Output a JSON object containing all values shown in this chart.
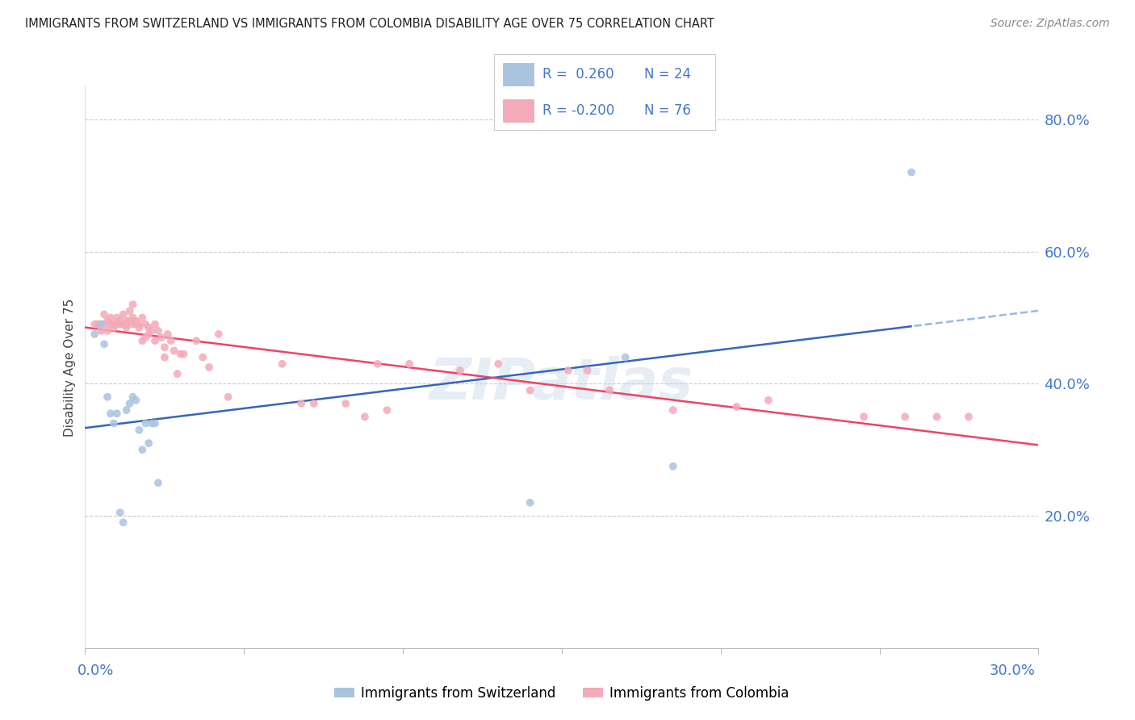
{
  "title": "IMMIGRANTS FROM SWITZERLAND VS IMMIGRANTS FROM COLOMBIA DISABILITY AGE OVER 75 CORRELATION CHART",
  "source": "Source: ZipAtlas.com",
  "ylabel": "Disability Age Over 75",
  "background_color": "#ffffff",
  "title_fontsize": 10.5,
  "watermark": "ZIPatlas",
  "xlim": [
    0.0,
    0.3
  ],
  "ylim": [
    0.0,
    0.85
  ],
  "right_yticks": [
    0.2,
    0.4,
    0.6,
    0.8
  ],
  "right_yticklabels": [
    "20.0%",
    "40.0%",
    "60.0%",
    "80.0%"
  ],
  "grid_color": "#cccccc",
  "grid_linestyle": "--",
  "grid_linewidth": 0.8,
  "grid_yticks": [
    0.2,
    0.4,
    0.6,
    0.8
  ],
  "color_swiss": "#aac4e0",
  "color_colombia": "#f4aab8",
  "color_swiss_line": "#3366bb",
  "color_colombia_line": "#ee4466",
  "color_swiss_dash": "#99bbdd",
  "swiss_x": [
    0.003,
    0.005,
    0.006,
    0.007,
    0.008,
    0.009,
    0.01,
    0.011,
    0.012,
    0.013,
    0.014,
    0.015,
    0.016,
    0.017,
    0.018,
    0.019,
    0.02,
    0.021,
    0.022,
    0.023,
    0.14,
    0.17,
    0.185,
    0.26
  ],
  "swiss_y": [
    0.475,
    0.49,
    0.46,
    0.38,
    0.355,
    0.34,
    0.355,
    0.205,
    0.19,
    0.36,
    0.37,
    0.38,
    0.375,
    0.33,
    0.3,
    0.34,
    0.31,
    0.34,
    0.34,
    0.25,
    0.22,
    0.44,
    0.275,
    0.72
  ],
  "colombia_x": [
    0.003,
    0.004,
    0.004,
    0.005,
    0.005,
    0.006,
    0.006,
    0.007,
    0.007,
    0.008,
    0.008,
    0.009,
    0.009,
    0.01,
    0.01,
    0.011,
    0.011,
    0.012,
    0.012,
    0.013,
    0.013,
    0.013,
    0.014,
    0.014,
    0.015,
    0.015,
    0.015,
    0.016,
    0.016,
    0.017,
    0.017,
    0.018,
    0.018,
    0.019,
    0.019,
    0.02,
    0.02,
    0.021,
    0.022,
    0.022,
    0.023,
    0.024,
    0.025,
    0.025,
    0.026,
    0.027,
    0.028,
    0.029,
    0.03,
    0.031,
    0.035,
    0.037,
    0.039,
    0.042,
    0.045,
    0.062,
    0.068,
    0.072,
    0.082,
    0.088,
    0.092,
    0.095,
    0.102,
    0.118,
    0.13,
    0.14,
    0.152,
    0.158,
    0.165,
    0.185,
    0.205,
    0.215,
    0.245,
    0.258,
    0.268,
    0.278
  ],
  "colombia_y": [
    0.49,
    0.49,
    0.49,
    0.49,
    0.48,
    0.49,
    0.505,
    0.48,
    0.495,
    0.5,
    0.49,
    0.485,
    0.49,
    0.5,
    0.49,
    0.495,
    0.49,
    0.505,
    0.49,
    0.495,
    0.49,
    0.485,
    0.51,
    0.495,
    0.52,
    0.5,
    0.49,
    0.495,
    0.49,
    0.49,
    0.485,
    0.5,
    0.465,
    0.49,
    0.47,
    0.485,
    0.475,
    0.48,
    0.49,
    0.465,
    0.48,
    0.47,
    0.455,
    0.44,
    0.475,
    0.465,
    0.45,
    0.415,
    0.445,
    0.445,
    0.465,
    0.44,
    0.425,
    0.475,
    0.38,
    0.43,
    0.37,
    0.37,
    0.37,
    0.35,
    0.43,
    0.36,
    0.43,
    0.42,
    0.43,
    0.39,
    0.42,
    0.42,
    0.39,
    0.36,
    0.365,
    0.375,
    0.35,
    0.35,
    0.35,
    0.35
  ]
}
